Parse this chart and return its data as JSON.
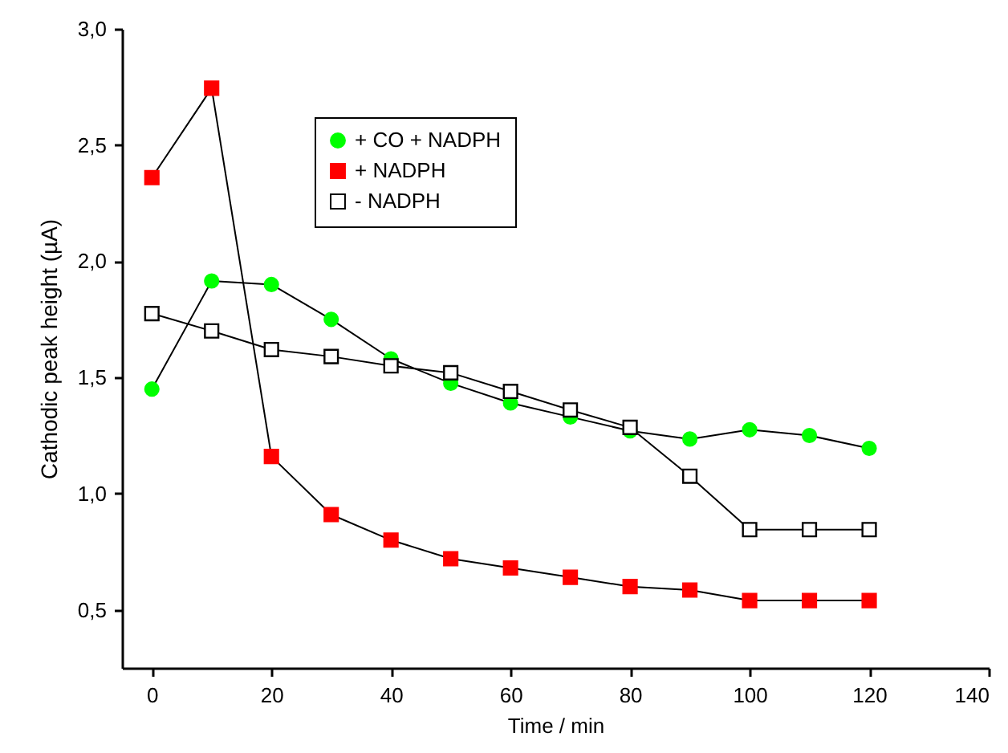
{
  "chart_data": {
    "type": "line",
    "xlabel": "Time / min",
    "ylabel": "Cathodic peak height (µA)",
    "x": [
      0,
      10,
      20,
      30,
      40,
      50,
      60,
      70,
      80,
      90,
      100,
      110,
      120
    ],
    "series": [
      {
        "name": "+ CO + NADPH",
        "color": "#00ff00",
        "marker": "circle",
        "values": [
          1.45,
          1.915,
          1.9,
          1.75,
          1.58,
          1.475,
          1.39,
          1.33,
          1.27,
          1.235,
          1.275,
          1.25,
          1.195
        ]
      },
      {
        "name": "+ NADPH",
        "color": "#ff0000",
        "marker": "square",
        "values": [
          2.36,
          2.745,
          1.16,
          0.91,
          0.8,
          0.72,
          0.68,
          0.64,
          0.6,
          0.585,
          0.54,
          0.54,
          0.54
        ]
      },
      {
        "name": "- NADPH",
        "color": "#ffffff",
        "marker": "square",
        "values": [
          1.775,
          1.7,
          1.62,
          1.59,
          1.55,
          1.52,
          1.44,
          1.36,
          1.285,
          1.075,
          0.845,
          0.845,
          0.845
        ]
      }
    ],
    "xlim": [
      -5,
      140
    ],
    "xticks": [
      0,
      20,
      40,
      60,
      80,
      100,
      120,
      140
    ],
    "ylim": [
      0.25,
      3
    ],
    "yticks": [
      {
        "value": 0.5,
        "label": "0,5"
      },
      {
        "value": 1.0,
        "label": "1,0"
      },
      {
        "value": 1.5,
        "label": "1,5"
      },
      {
        "value": 2.0,
        "label": "2,0"
      },
      {
        "value": 2.5,
        "label": "2,5"
      },
      {
        "value": 3.0,
        "label": "3,0"
      }
    ],
    "grid": false,
    "legend": "top left",
    "line_style": "solid"
  }
}
